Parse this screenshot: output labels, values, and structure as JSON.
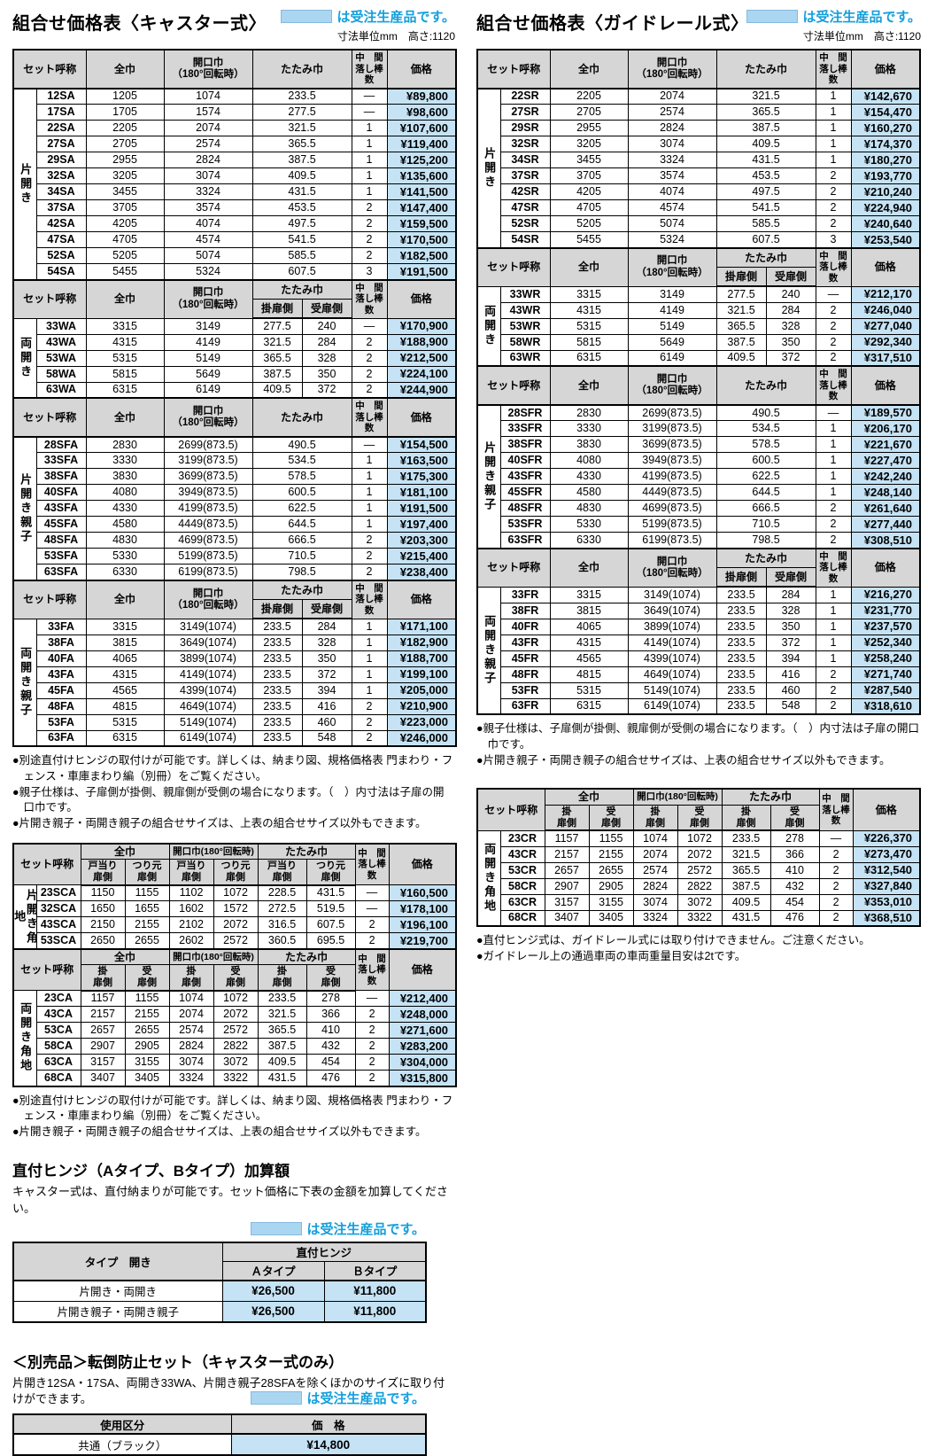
{
  "header_labels": {
    "set_name": "セット呼称",
    "zenha": "全巾",
    "kaikou": "開口巾\n（180°回転時）",
    "kaikou_inline": "開口巾(180°回転時)",
    "tatami": "たたみ巾",
    "kake": "掛扉側",
    "uke": "受扉側",
    "kake2": "掛\n扉側",
    "uke2": "受\n扉側",
    "tobira_stop": "戸当り\n扉側",
    "tsurimoto": "つり元\n扉側",
    "naka": "中　間\n落し棒数",
    "price": "価格"
  },
  "left": {
    "title": "組合せ価格表〈キャスター式〉",
    "legend_text": "は受注生産品です。",
    "units_note": "寸法単位mm　高さ:1120",
    "main_table": {
      "sections": [
        {
          "label": "片開き",
          "type": "plain",
          "rows": [
            [
              "12SA",
              "1205",
              "1074",
              "233.5",
              "—",
              "¥89,800"
            ],
            [
              "17SA",
              "1705",
              "1574",
              "277.5",
              "—",
              "¥98,600"
            ],
            [
              "22SA",
              "2205",
              "2074",
              "321.5",
              "1",
              "¥107,600"
            ],
            [
              "27SA",
              "2705",
              "2574",
              "365.5",
              "1",
              "¥119,400"
            ],
            [
              "29SA",
              "2955",
              "2824",
              "387.5",
              "1",
              "¥125,200"
            ],
            [
              "32SA",
              "3205",
              "3074",
              "409.5",
              "1",
              "¥135,600"
            ],
            [
              "34SA",
              "3455",
              "3324",
              "431.5",
              "1",
              "¥141,500"
            ],
            [
              "37SA",
              "3705",
              "3574",
              "453.5",
              "2",
              "¥147,400"
            ],
            [
              "42SA",
              "4205",
              "4074",
              "497.5",
              "2",
              "¥159,500"
            ],
            [
              "47SA",
              "4705",
              "4574",
              "541.5",
              "2",
              "¥170,500"
            ],
            [
              "52SA",
              "5205",
              "5074",
              "585.5",
              "2",
              "¥182,500"
            ],
            [
              "54SA",
              "5455",
              "5324",
              "607.5",
              "3",
              "¥191,500"
            ]
          ]
        },
        {
          "label": "両開き",
          "type": "split",
          "rows": [
            [
              "33WA",
              "3315",
              "3149",
              "277.5",
              "240",
              "—",
              "¥170,900"
            ],
            [
              "43WA",
              "4315",
              "4149",
              "321.5",
              "284",
              "2",
              "¥188,900"
            ],
            [
              "53WA",
              "5315",
              "5149",
              "365.5",
              "328",
              "2",
              "¥212,500"
            ],
            [
              "58WA",
              "5815",
              "5649",
              "387.5",
              "350",
              "2",
              "¥224,100"
            ],
            [
              "63WA",
              "6315",
              "6149",
              "409.5",
              "372",
              "2",
              "¥244,900"
            ]
          ]
        },
        {
          "label": "片開き親子",
          "type": "plain",
          "rows": [
            [
              "28SFA",
              "2830",
              "2699(873.5)",
              "490.5",
              "—",
              "¥154,500"
            ],
            [
              "33SFA",
              "3330",
              "3199(873.5)",
              "534.5",
              "1",
              "¥163,500"
            ],
            [
              "38SFA",
              "3830",
              "3699(873.5)",
              "578.5",
              "1",
              "¥175,300"
            ],
            [
              "40SFA",
              "4080",
              "3949(873.5)",
              "600.5",
              "1",
              "¥181,100"
            ],
            [
              "43SFA",
              "4330",
              "4199(873.5)",
              "622.5",
              "1",
              "¥191,500"
            ],
            [
              "45SFA",
              "4580",
              "4449(873.5)",
              "644.5",
              "1",
              "¥197,400"
            ],
            [
              "48SFA",
              "4830",
              "4699(873.5)",
              "666.5",
              "2",
              "¥203,300"
            ],
            [
              "53SFA",
              "5330",
              "5199(873.5)",
              "710.5",
              "2",
              "¥215,400"
            ],
            [
              "63SFA",
              "6330",
              "6199(873.5)",
              "798.5",
              "2",
              "¥238,400"
            ]
          ]
        },
        {
          "label": "両開き親子",
          "type": "split",
          "rows": [
            [
              "33FA",
              "3315",
              "3149(1074)",
              "233.5",
              "284",
              "1",
              "¥171,100"
            ],
            [
              "38FA",
              "3815",
              "3649(1074)",
              "233.5",
              "328",
              "1",
              "¥182,900"
            ],
            [
              "40FA",
              "4065",
              "3899(1074)",
              "233.5",
              "350",
              "1",
              "¥188,700"
            ],
            [
              "43FA",
              "4315",
              "4149(1074)",
              "233.5",
              "372",
              "1",
              "¥199,100"
            ],
            [
              "45FA",
              "4565",
              "4399(1074)",
              "233.5",
              "394",
              "1",
              "¥205,000"
            ],
            [
              "48FA",
              "4815",
              "4649(1074)",
              "233.5",
              "416",
              "2",
              "¥210,900"
            ],
            [
              "53FA",
              "5315",
              "5149(1074)",
              "233.5",
              "460",
              "2",
              "¥223,000"
            ],
            [
              "63FA",
              "6315",
              "6149(1074)",
              "233.5",
              "548",
              "2",
              "¥246,000"
            ]
          ]
        }
      ]
    },
    "notes_main": [
      "●別途直付けヒンジの取付けが可能です。詳しくは、納まり図、規格価格表 門まわり・フェンス・車庫まわり編（別冊）をご覧ください。",
      "●親子仕様は、子扉側が掛側、親扉側が受側の場合になります。（　）内寸法は子扉の開口巾です。",
      "●片開き親子・両開き親子の組合せサイズは、上表の組合せサイズ以外もできます。"
    ],
    "corner_table": {
      "sections": [
        {
          "label": "片開き角地",
          "type": "corner_tsuri",
          "rows": [
            [
              "23SCA",
              "1150",
              "1155",
              "1102",
              "1072",
              "228.5",
              "431.5",
              "—",
              "¥160,500"
            ],
            [
              "32SCA",
              "1650",
              "1655",
              "1602",
              "1572",
              "272.5",
              "519.5",
              "—",
              "¥178,100"
            ],
            [
              "43SCA",
              "2150",
              "2155",
              "2102",
              "2072",
              "316.5",
              "607.5",
              "2",
              "¥196,100"
            ],
            [
              "53SCA",
              "2650",
              "2655",
              "2602",
              "2572",
              "360.5",
              "695.5",
              "2",
              "¥219,700"
            ]
          ]
        },
        {
          "label": "両開き角地",
          "type": "corner_kake",
          "rows": [
            [
              "23CA",
              "1157",
              "1155",
              "1074",
              "1072",
              "233.5",
              "278",
              "—",
              "¥212,400"
            ],
            [
              "43CA",
              "2157",
              "2155",
              "2074",
              "2072",
              "321.5",
              "366",
              "2",
              "¥248,000"
            ],
            [
              "53CA",
              "2657",
              "2655",
              "2574",
              "2572",
              "365.5",
              "410",
              "2",
              "¥271,600"
            ],
            [
              "58CA",
              "2907",
              "2905",
              "2824",
              "2822",
              "387.5",
              "432",
              "2",
              "¥283,200"
            ],
            [
              "63CA",
              "3157",
              "3155",
              "3074",
              "3072",
              "409.5",
              "454",
              "2",
              "¥304,000"
            ],
            [
              "68CA",
              "3407",
              "3405",
              "3324",
              "3322",
              "431.5",
              "476",
              "2",
              "¥315,800"
            ]
          ]
        }
      ]
    },
    "notes_corner": [
      "●別途直付けヒンジの取付けが可能です。詳しくは、納まり図、規格価格表 門まわり・フェンス・車庫まわり編（別冊）をご覧ください。",
      "●片開き親子・両開き親子の組合せサイズは、上表の組合せサイズ以外もできます。"
    ],
    "hinge": {
      "heading": "直付ヒンジ（Aタイプ、Bタイプ）加算額",
      "desc": "キャスター式は、直付納まりが可能です。セット価格に下表の金額を加算してください。",
      "legend_text": "は受注生産品です。",
      "col_type": "タイプ　開き",
      "col_group": "直付ヒンジ",
      "col_a": "Ａタイプ",
      "col_b": "Ｂタイプ",
      "rows": [
        [
          "片開き・両開き",
          "¥26,500",
          "¥11,800"
        ],
        [
          "片開き親子・両開き親子",
          "¥26,500",
          "¥11,800"
        ]
      ]
    },
    "optional": {
      "heading": "＜別売品＞転倒防止セット（キャスター式のみ）",
      "desc": "片開き12SA・17SA、両開き33WA、片開き親子28SFAを除くほかのサイズに取り付けができます。",
      "legend_text": "は受注生産品です。",
      "col_use": "使用区分",
      "col_price": "価　格",
      "rows": [
        [
          "共通（ブラック）",
          "¥14,800"
        ]
      ]
    }
  },
  "right": {
    "title": "組合せ価格表〈ガイドレール式〉",
    "legend_text": "は受注生産品です。",
    "units_note": "寸法単位mm　高さ:1120",
    "main_table": {
      "sections": [
        {
          "label": "片開き",
          "type": "plain",
          "rows": [
            [
              "22SR",
              "2205",
              "2074",
              "321.5",
              "1",
              "¥142,670"
            ],
            [
              "27SR",
              "2705",
              "2574",
              "365.5",
              "1",
              "¥154,470"
            ],
            [
              "29SR",
              "2955",
              "2824",
              "387.5",
              "1",
              "¥160,270"
            ],
            [
              "32SR",
              "3205",
              "3074",
              "409.5",
              "1",
              "¥174,370"
            ],
            [
              "34SR",
              "3455",
              "3324",
              "431.5",
              "1",
              "¥180,270"
            ],
            [
              "37SR",
              "3705",
              "3574",
              "453.5",
              "2",
              "¥193,770"
            ],
            [
              "42SR",
              "4205",
              "4074",
              "497.5",
              "2",
              "¥210,240"
            ],
            [
              "47SR",
              "4705",
              "4574",
              "541.5",
              "2",
              "¥224,940"
            ],
            [
              "52SR",
              "5205",
              "5074",
              "585.5",
              "2",
              "¥240,640"
            ],
            [
              "54SR",
              "5455",
              "5324",
              "607.5",
              "3",
              "¥253,540"
            ]
          ]
        },
        {
          "label": "両開き",
          "type": "split",
          "rows": [
            [
              "33WR",
              "3315",
              "3149",
              "277.5",
              "240",
              "—",
              "¥212,170"
            ],
            [
              "43WR",
              "4315",
              "4149",
              "321.5",
              "284",
              "2",
              "¥246,040"
            ],
            [
              "53WR",
              "5315",
              "5149",
              "365.5",
              "328",
              "2",
              "¥277,040"
            ],
            [
              "58WR",
              "5815",
              "5649",
              "387.5",
              "350",
              "2",
              "¥292,340"
            ],
            [
              "63WR",
              "6315",
              "6149",
              "409.5",
              "372",
              "2",
              "¥317,510"
            ]
          ]
        },
        {
          "label": "片開き親子",
          "type": "plain",
          "rows": [
            [
              "28SFR",
              "2830",
              "2699(873.5)",
              "490.5",
              "—",
              "¥189,570"
            ],
            [
              "33SFR",
              "3330",
              "3199(873.5)",
              "534.5",
              "1",
              "¥206,170"
            ],
            [
              "38SFR",
              "3830",
              "3699(873.5)",
              "578.5",
              "1",
              "¥221,670"
            ],
            [
              "40SFR",
              "4080",
              "3949(873.5)",
              "600.5",
              "1",
              "¥227,470"
            ],
            [
              "43SFR",
              "4330",
              "4199(873.5)",
              "622.5",
              "1",
              "¥242,240"
            ],
            [
              "45SFR",
              "4580",
              "4449(873.5)",
              "644.5",
              "1",
              "¥248,140"
            ],
            [
              "48SFR",
              "4830",
              "4699(873.5)",
              "666.5",
              "2",
              "¥261,640"
            ],
            [
              "53SFR",
              "5330",
              "5199(873.5)",
              "710.5",
              "2",
              "¥277,440"
            ],
            [
              "63SFR",
              "6330",
              "6199(873.5)",
              "798.5",
              "2",
              "¥308,510"
            ]
          ]
        },
        {
          "label": "両開き親子",
          "type": "split",
          "rows": [
            [
              "33FR",
              "3315",
              "3149(1074)",
              "233.5",
              "284",
              "1",
              "¥216,270"
            ],
            [
              "38FR",
              "3815",
              "3649(1074)",
              "233.5",
              "328",
              "1",
              "¥231,770"
            ],
            [
              "40FR",
              "4065",
              "3899(1074)",
              "233.5",
              "350",
              "1",
              "¥237,570"
            ],
            [
              "43FR",
              "4315",
              "4149(1074)",
              "233.5",
              "372",
              "1",
              "¥252,340"
            ],
            [
              "45FR",
              "4565",
              "4399(1074)",
              "233.5",
              "394",
              "1",
              "¥258,240"
            ],
            [
              "48FR",
              "4815",
              "4649(1074)",
              "233.5",
              "416",
              "2",
              "¥271,740"
            ],
            [
              "53FR",
              "5315",
              "5149(1074)",
              "233.5",
              "460",
              "2",
              "¥287,540"
            ],
            [
              "63FR",
              "6315",
              "6149(1074)",
              "233.5",
              "548",
              "2",
              "¥318,610"
            ]
          ]
        }
      ]
    },
    "notes_main": [
      "●親子仕様は、子扉側が掛側、親扉側が受側の場合になります。（　）内寸法は子扉の開口巾です。",
      "●片開き親子・両開き親子の組合せサイズは、上表の組合せサイズ以外もできます。"
    ],
    "corner_table": {
      "sections": [
        {
          "label": "両開き角地",
          "type": "corner_kake",
          "rows": [
            [
              "23CR",
              "1157",
              "1155",
              "1074",
              "1072",
              "233.5",
              "278",
              "—",
              "¥226,370"
            ],
            [
              "43CR",
              "2157",
              "2155",
              "2074",
              "2072",
              "321.5",
              "366",
              "2",
              "¥273,470"
            ],
            [
              "53CR",
              "2657",
              "2655",
              "2574",
              "2572",
              "365.5",
              "410",
              "2",
              "¥312,540"
            ],
            [
              "58CR",
              "2907",
              "2905",
              "2824",
              "2822",
              "387.5",
              "432",
              "2",
              "¥327,840"
            ],
            [
              "63CR",
              "3157",
              "3155",
              "3074",
              "3072",
              "409.5",
              "454",
              "2",
              "¥353,010"
            ],
            [
              "68CR",
              "3407",
              "3405",
              "3324",
              "3322",
              "431.5",
              "476",
              "2",
              "¥368,510"
            ]
          ]
        }
      ]
    },
    "notes_corner": [
      "●直付ヒンジ式は、ガイドレール式には取り付けできません。ご注意ください。",
      "●ガイドレール上の通過車両の車両重量目安は2tです。"
    ]
  },
  "colors": {
    "price_cell_blue": "#c5e3f5",
    "header_gray": "#d6d6d6",
    "legend_swatch_blue": "#abd6f2",
    "legend_text_cyan": "#149fdb"
  }
}
